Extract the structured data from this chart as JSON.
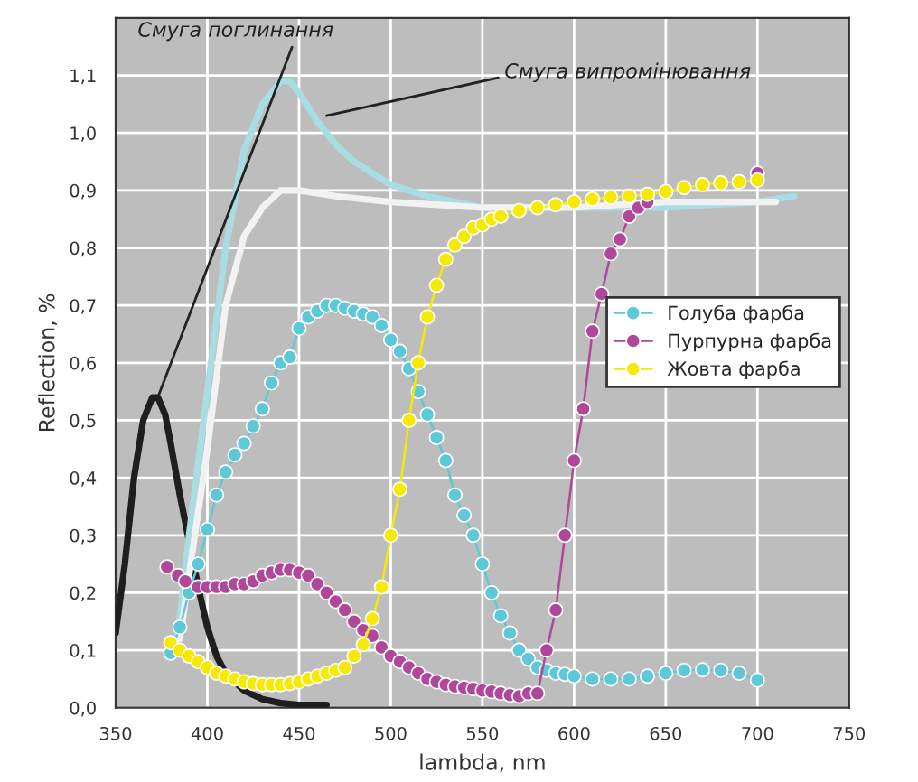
{
  "chart_data": {
    "type": "line",
    "xlabel": "lambda, nm",
    "ylabel": "Reflection, %",
    "xlim": [
      350,
      750
    ],
    "ylim": [
      0,
      1.2
    ],
    "xticks": [
      350,
      400,
      450,
      500,
      550,
      600,
      650,
      700,
      750
    ],
    "yticks": [
      {
        "value": 0,
        "label": "0,0"
      },
      {
        "value": 0.1,
        "label": "0,1"
      },
      {
        "value": 0.2,
        "label": "0,2"
      },
      {
        "value": 0.3,
        "label": "0,3"
      },
      {
        "value": 0.4,
        "label": "0,4"
      },
      {
        "value": 0.5,
        "label": "0,5"
      },
      {
        "value": 0.6,
        "label": "0,6"
      },
      {
        "value": 0.7,
        "label": "0,7"
      },
      {
        "value": 0.8,
        "label": "0,8"
      },
      {
        "value": 0.9,
        "label": "0,9"
      },
      {
        "value": 1.0,
        "label": "1,0"
      },
      {
        "value": 1.1,
        "label": "1,1"
      }
    ],
    "grid": true,
    "legend": "right",
    "annotations": [
      {
        "text": "Смуга поглинання",
        "x": 373,
        "y": 0.54
      },
      {
        "text": "Смуга випромінювання",
        "x": 465,
        "y": 1.03
      }
    ],
    "series": [
      {
        "color": "#1e1e1e",
        "marker": "none",
        "x": [
          350,
          355,
          360,
          365,
          370,
          373,
          377,
          380,
          385,
          390,
          395,
          400,
          405,
          410,
          420,
          430,
          440,
          450,
          465
        ],
        "values": [
          0.13,
          0.25,
          0.4,
          0.5,
          0.54,
          0.54,
          0.51,
          0.46,
          0.37,
          0.29,
          0.21,
          0.14,
          0.09,
          0.06,
          0.03,
          0.015,
          0.008,
          0.005,
          0.005
        ]
      },
      {
        "color": "#a9dde5",
        "marker": "none",
        "x": [
          383,
          390,
          400,
          410,
          420,
          430,
          440,
          445,
          450,
          460,
          470,
          480,
          500,
          520,
          550,
          600,
          650,
          700,
          720
        ],
        "values": [
          0.1,
          0.3,
          0.55,
          0.8,
          0.97,
          1.05,
          1.09,
          1.09,
          1.07,
          1.02,
          0.98,
          0.95,
          0.91,
          0.89,
          0.87,
          0.87,
          0.87,
          0.88,
          0.89
        ]
      },
      {
        "color": "#f2f2f2",
        "marker": "none",
        "x": [
          385,
          400,
          410,
          420,
          430,
          440,
          450,
          470,
          500,
          550,
          600,
          650,
          700,
          710
        ],
        "values": [
          0.12,
          0.45,
          0.7,
          0.82,
          0.87,
          0.9,
          0.9,
          0.89,
          0.88,
          0.87,
          0.87,
          0.88,
          0.88,
          0.88
        ]
      },
      {
        "name": "Голуба фарба",
        "color": "#5cc8d8",
        "marker": "circle",
        "x": [
          380,
          385,
          390,
          395,
          400,
          405,
          410,
          415,
          420,
          425,
          430,
          435,
          440,
          445,
          450,
          455,
          460,
          465,
          470,
          475,
          480,
          485,
          490,
          495,
          500,
          505,
          510,
          515,
          520,
          525,
          530,
          535,
          540,
          545,
          550,
          555,
          560,
          565,
          570,
          575,
          580,
          585,
          590,
          595,
          600,
          610,
          620,
          630,
          640,
          650,
          660,
          670,
          680,
          690,
          700
        ],
        "values": [
          0.095,
          0.14,
          0.2,
          0.25,
          0.31,
          0.37,
          0.41,
          0.44,
          0.46,
          0.49,
          0.52,
          0.565,
          0.6,
          0.61,
          0.66,
          0.68,
          0.69,
          0.7,
          0.7,
          0.695,
          0.69,
          0.685,
          0.68,
          0.665,
          0.64,
          0.62,
          0.59,
          0.55,
          0.51,
          0.47,
          0.43,
          0.37,
          0.335,
          0.3,
          0.25,
          0.2,
          0.16,
          0.13,
          0.1,
          0.085,
          0.07,
          0.065,
          0.06,
          0.058,
          0.055,
          0.05,
          0.05,
          0.05,
          0.055,
          0.06,
          0.065,
          0.066,
          0.065,
          0.06,
          0.048
        ]
      },
      {
        "name": "Пурпурна фарба",
        "color": "#b0479a",
        "marker": "circle",
        "x": [
          378,
          384,
          388,
          395,
          400,
          405,
          410,
          415,
          420,
          425,
          430,
          435,
          440,
          445,
          450,
          455,
          460,
          465,
          470,
          475,
          480,
          485,
          490,
          495,
          500,
          505,
          510,
          515,
          520,
          525,
          530,
          535,
          540,
          545,
          550,
          555,
          560,
          565,
          570,
          575,
          580,
          585,
          590,
          595,
          600,
          605,
          610,
          615,
          620,
          625,
          630,
          635,
          640,
          645,
          650,
          660,
          670,
          680,
          690,
          700
        ],
        "values": [
          0.245,
          0.23,
          0.22,
          0.21,
          0.21,
          0.21,
          0.21,
          0.215,
          0.215,
          0.22,
          0.23,
          0.235,
          0.24,
          0.24,
          0.235,
          0.23,
          0.215,
          0.2,
          0.185,
          0.17,
          0.15,
          0.135,
          0.125,
          0.105,
          0.09,
          0.08,
          0.07,
          0.06,
          0.05,
          0.045,
          0.04,
          0.037,
          0.035,
          0.033,
          0.03,
          0.028,
          0.025,
          0.022,
          0.02,
          0.025,
          0.025,
          0.1,
          0.17,
          0.3,
          0.43,
          0.52,
          0.655,
          0.72,
          0.79,
          0.815,
          0.855,
          0.87,
          0.88,
          null,
          null,
          null,
          null,
          null,
          null,
          0.93
        ]
      },
      {
        "name": "Жовта фарба",
        "color": "#f5ea00",
        "marker": "circle",
        "x": [
          380,
          385,
          390,
          395,
          400,
          405,
          410,
          415,
          420,
          425,
          430,
          435,
          440,
          445,
          450,
          455,
          460,
          465,
          470,
          475,
          480,
          485,
          490,
          495,
          500,
          505,
          510,
          515,
          520,
          525,
          530,
          535,
          540,
          545,
          550,
          555,
          560,
          570,
          580,
          590,
          600,
          610,
          620,
          630,
          640,
          650,
          660,
          670,
          680,
          690,
          700
        ],
        "values": [
          0.113,
          0.1,
          0.09,
          0.08,
          0.07,
          0.06,
          0.055,
          0.05,
          0.045,
          0.042,
          0.04,
          0.04,
          0.04,
          0.042,
          0.045,
          0.05,
          0.055,
          0.06,
          0.065,
          0.07,
          0.09,
          0.11,
          0.155,
          0.21,
          0.3,
          0.38,
          0.5,
          0.6,
          0.68,
          0.735,
          0.78,
          0.805,
          0.82,
          0.835,
          0.84,
          0.85,
          0.855,
          0.865,
          0.87,
          0.875,
          0.88,
          0.885,
          0.888,
          0.89,
          0.893,
          0.898,
          0.905,
          0.91,
          0.913,
          0.915,
          0.918
        ]
      }
    ]
  }
}
